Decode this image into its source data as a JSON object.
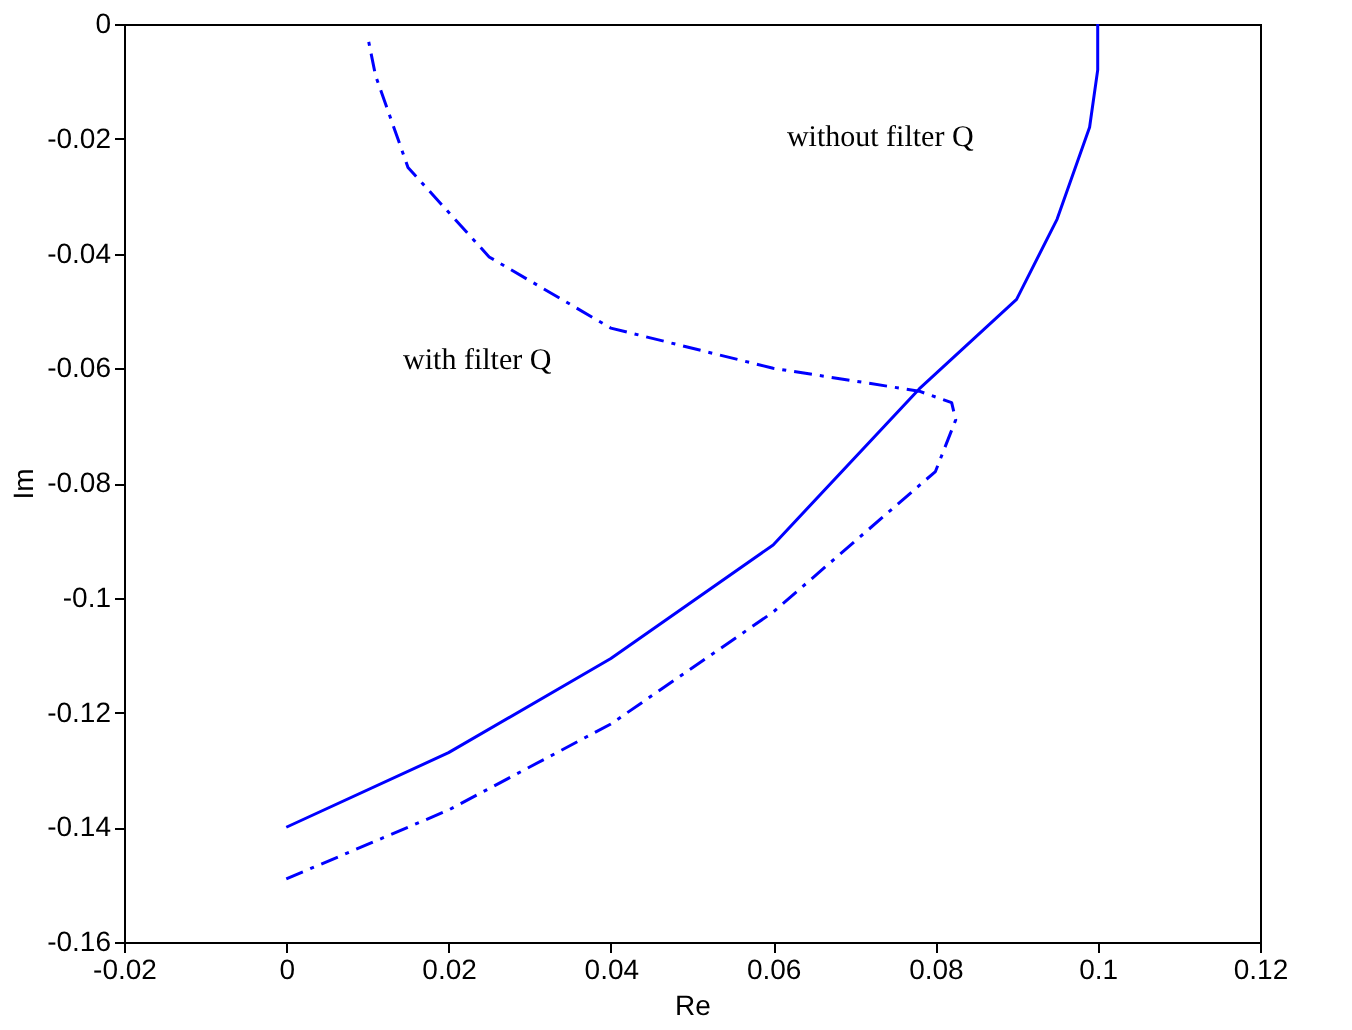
{
  "chart_data": {
    "type": "line",
    "xlabel": "Re",
    "ylabel": "Im",
    "xlim": [
      -0.02,
      0.12
    ],
    "ylim": [
      -0.16,
      0
    ],
    "xticks": [
      -0.02,
      0,
      0.02,
      0.04,
      0.06,
      0.08,
      0.1,
      0.12
    ],
    "yticks": [
      -0.16,
      -0.14,
      -0.12,
      -0.1,
      -0.08,
      -0.06,
      -0.04,
      -0.02,
      0
    ],
    "grid": false,
    "series": [
      {
        "color": "#0000ff",
        "line_style": "solid",
        "x": [
          0,
          0.02,
          0.04,
          0.06,
          0.078,
          0.09,
          0.095,
          0.099,
          0.1,
          0.1
        ],
        "values": [
          -0.14,
          -0.127,
          -0.1106,
          -0.0908,
          -0.0636,
          -0.048,
          -0.034,
          -0.018,
          -0.008,
          0
        ]
      },
      {
        "color": "#0000ff",
        "line_style": "dashdot",
        "x": [
          0,
          0.02,
          0.04,
          0.06,
          0.08,
          0.0825,
          0.082,
          0.078,
          0.06,
          0.04,
          0.025,
          0.015,
          0.011,
          0.01
        ],
        "values": [
          -0.149,
          -0.137,
          -0.122,
          -0.1025,
          -0.078,
          -0.069,
          -0.066,
          -0.064,
          -0.06,
          -0.053,
          -0.0406,
          -0.025,
          -0.009,
          -0.002
        ]
      }
    ],
    "annotations": [
      "without filter Q",
      "with filter Q"
    ]
  }
}
